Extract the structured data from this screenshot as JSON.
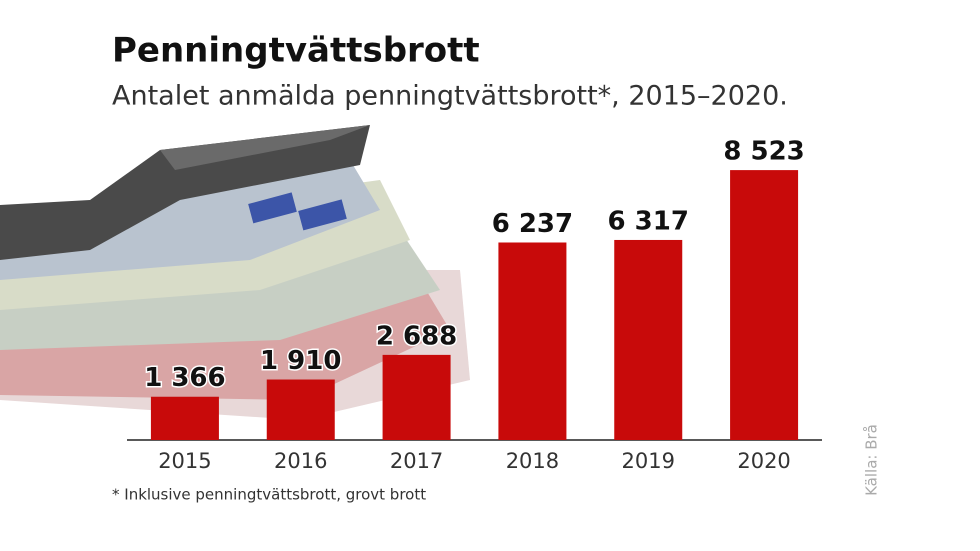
{
  "chart_data": {
    "type": "bar",
    "title": "Penningtvättsbrott",
    "subtitle": "Antalet anmälda penningtvättsbrott*, 2015–2020.",
    "categories": [
      "2015",
      "2016",
      "2017",
      "2018",
      "2019",
      "2020"
    ],
    "values": [
      1366,
      1910,
      2688,
      6237,
      6317,
      8523
    ],
    "value_labels": [
      "1 366",
      "1 910",
      "2 688",
      "6 237",
      "6 317",
      "8 523"
    ],
    "color": "#c80a0a",
    "ylim": [
      0,
      9000
    ],
    "footnote": "* Inklusive penningtvättsbrott, grovt brott",
    "source": "Källa: Brå"
  }
}
